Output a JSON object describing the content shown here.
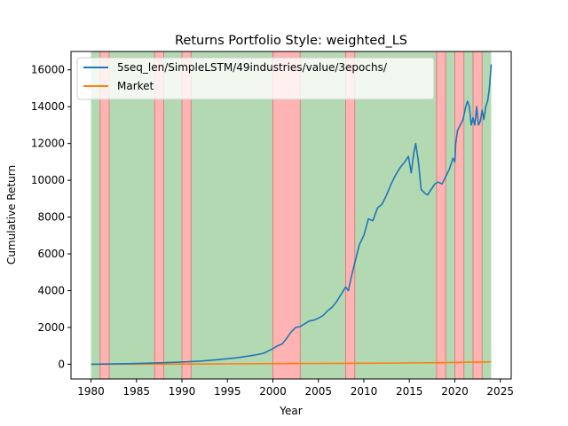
{
  "chart_data": {
    "type": "line",
    "title": "Returns Portfolio Style: weighted_LS",
    "xlabel": "Year",
    "ylabel": "Cumulative Return",
    "xlim": [
      1977.8,
      2026.2
    ],
    "ylim": [
      -800,
      17000
    ],
    "xticks": [
      1980,
      1985,
      1990,
      1995,
      2000,
      2005,
      2010,
      2015,
      2020,
      2025
    ],
    "yticks": [
      0,
      2000,
      4000,
      6000,
      8000,
      10000,
      12000,
      14000,
      16000
    ],
    "legend_position": "upper-left",
    "shaded_regions": {
      "range": [
        1980.0,
        2024.0
      ],
      "base_color": "#b3d9b3",
      "highlight_color": "#ffb3b3",
      "highlight_spans": [
        [
          1981.0,
          1982.0
        ],
        [
          1987.0,
          1988.0
        ],
        [
          1990.0,
          1991.0
        ],
        [
          2000.0,
          2003.0
        ],
        [
          2008.0,
          2009.0
        ],
        [
          2018.0,
          2019.0
        ],
        [
          2020.0,
          2021.0
        ],
        [
          2022.0,
          2023.0
        ]
      ]
    },
    "series": [
      {
        "name": "5seq_len/SimpleLSTM/49industries/value/3epochs/",
        "color": "#1f77b4",
        "x": [
          1980,
          1982,
          1984,
          1986,
          1988,
          1990,
          1992,
          1994,
          1995,
          1996,
          1997,
          1998,
          1999,
          1999.8,
          2000,
          2000.5,
          2001,
          2001.5,
          2002,
          2002.5,
          2003,
          2003.5,
          2004,
          2004.5,
          2005,
          2005.5,
          2006,
          2006.5,
          2007,
          2007.5,
          2008,
          2008.3,
          2008.6,
          2009,
          2009.5,
          2010,
          2010.5,
          2011,
          2011.5,
          2012,
          2012.5,
          2013,
          2013.5,
          2014,
          2014.5,
          2014.9,
          2015.2,
          2015.5,
          2015.7,
          2016,
          2016.3,
          2016.7,
          2017,
          2017.4,
          2017.8,
          2018.2,
          2018.6,
          2019,
          2019.4,
          2019.8,
          2020,
          2020.1,
          2020.3,
          2020.6,
          2020.9,
          2021.2,
          2021.4,
          2021.6,
          2021.8,
          2022.0,
          2022.2,
          2022.4,
          2022.6,
          2022.8,
          2023.0,
          2023.2,
          2023.4,
          2023.6,
          2023.8,
          2024.0
        ],
        "values": [
          0,
          15,
          30,
          55,
          85,
          120,
          170,
          250,
          300,
          350,
          420,
          500,
          600,
          800,
          850,
          1000,
          1100,
          1400,
          1750,
          2000,
          2050,
          2200,
          2350,
          2400,
          2500,
          2650,
          2900,
          3100,
          3400,
          3800,
          4200,
          4000,
          4700,
          5500,
          6500,
          7000,
          7900,
          7800,
          8500,
          8700,
          9200,
          9800,
          10300,
          10700,
          11000,
          11300,
          10400,
          11500,
          12000,
          11000,
          9500,
          9300,
          9200,
          9500,
          9800,
          9900,
          9800,
          10200,
          10600,
          11200,
          11000,
          12000,
          12700,
          13000,
          13300,
          14000,
          14300,
          14000,
          13000,
          13400,
          13000,
          14000,
          13000,
          13200,
          13800,
          13300,
          14000,
          14300,
          15000,
          16300
        ]
      },
      {
        "name": "Market",
        "color": "#ff7f0e",
        "x": [
          1980,
          1985,
          1990,
          1995,
          2000,
          2005,
          2010,
          2015,
          2018,
          2020,
          2021,
          2022,
          2023,
          2024
        ],
        "values": [
          0,
          5,
          12,
          22,
          35,
          45,
          55,
          70,
          85,
          95,
          115,
          110,
          120,
          130
        ]
      }
    ]
  }
}
